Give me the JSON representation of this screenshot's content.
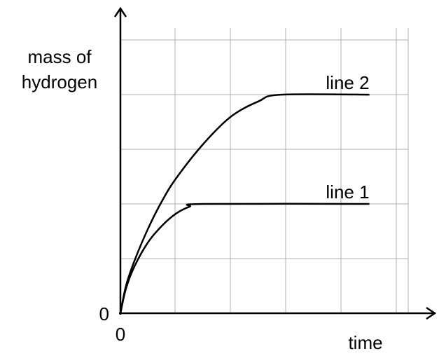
{
  "chart_data": {
    "type": "line",
    "x_label": "time",
    "y_label": [
      "mass of",
      "hydrogen"
    ],
    "xlim": [
      0,
      5.67
    ],
    "ylim": [
      0,
      5.54
    ],
    "xticks": [
      0
    ],
    "yticks": [
      0
    ],
    "color": "#000000",
    "series": [
      {
        "name": "line 1",
        "color": "#000000",
        "x": [
          0,
          0.1,
          0.25,
          0.5,
          0.75,
          1,
          1.25,
          1.5,
          4.5
        ],
        "values": [
          0,
          0.45,
          0.85,
          1.3,
          1.6,
          1.82,
          1.95,
          2,
          2
        ]
      },
      {
        "name": "line 2",
        "color": "#000000",
        "x": [
          0,
          0.1,
          0.25,
          0.5,
          0.75,
          1,
          1.5,
          2,
          2.5,
          2.9,
          4.5
        ],
        "values": [
          0,
          0.5,
          0.95,
          1.55,
          2.05,
          2.46,
          3.1,
          3.6,
          3.88,
          4,
          4
        ]
      }
    ]
  }
}
